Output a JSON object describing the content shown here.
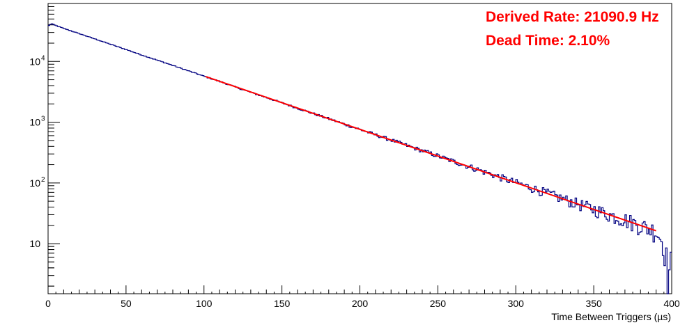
{
  "chart_data": {
    "type": "line",
    "title": "",
    "xlabel": "Time Between Triggers (µs)",
    "ylabel": "",
    "xlim": [
      0,
      400
    ],
    "ylim": [
      1.5,
      90000
    ],
    "y_scale": "log",
    "x_ticks": [
      0,
      50,
      100,
      150,
      200,
      250,
      300,
      350,
      400
    ],
    "x_tick_labels": [
      "0",
      "50",
      "100",
      "150",
      "200",
      "250",
      "300",
      "350",
      "400"
    ],
    "y_ticks": [
      10,
      100,
      1000,
      10000
    ],
    "y_tick_labels": [
      {
        "base": "10",
        "exp": ""
      },
      {
        "base": "10",
        "exp": "2"
      },
      {
        "base": "10",
        "exp": "3"
      },
      {
        "base": "10",
        "exp": "4"
      }
    ],
    "grid": false,
    "series": [
      {
        "kind": "histogram",
        "color": "#000080",
        "x": [
          0,
          2,
          5,
          10,
          20,
          30,
          40,
          50,
          60,
          70,
          80,
          90,
          100,
          110,
          120,
          130,
          140,
          150,
          160,
          170,
          180,
          190,
          200,
          210,
          220,
          230,
          240,
          250,
          260,
          270,
          280,
          290,
          300,
          310,
          320,
          330,
          340,
          350,
          360,
          370,
          380,
          390,
          395,
          398,
          400
        ],
        "values": [
          38000,
          42000,
          39000,
          35000,
          28700,
          23500,
          19200,
          15700,
          12800,
          10500,
          8600,
          7000,
          5700,
          4700,
          3800,
          3100,
          2550,
          2080,
          1700,
          1390,
          1140,
          930,
          760,
          620,
          510,
          415,
          340,
          278,
          227,
          186,
          152,
          124,
          101,
          83,
          68,
          55,
          45,
          37,
          30,
          25,
          20,
          16,
          10,
          3.2,
          5
        ]
      },
      {
        "kind": "fit",
        "color": "#ff0000",
        "x": [
          101,
          390
        ],
        "values": [
          5650,
          16.3
        ]
      }
    ],
    "annotations": [
      "Derived Rate: 21090.9 Hz",
      "Dead Time: 2.10%"
    ]
  }
}
